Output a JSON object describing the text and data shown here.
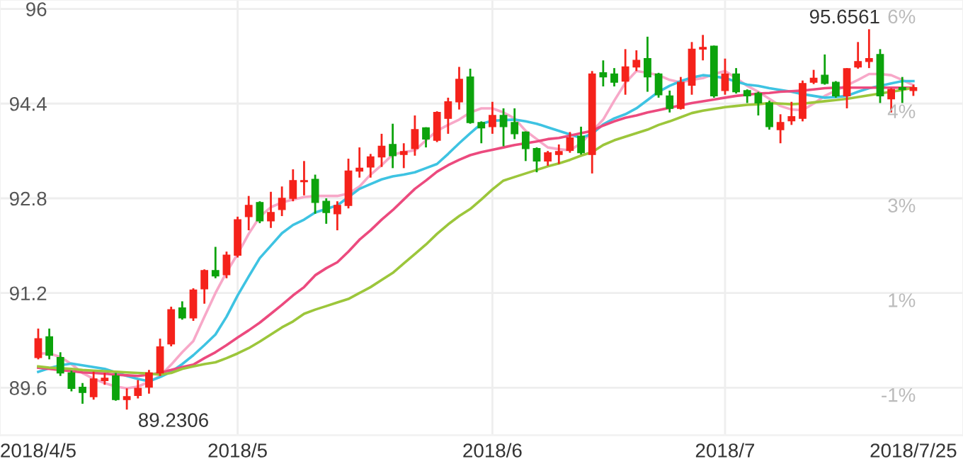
{
  "chart_data": {
    "type": "candlestick",
    "categories": [
      "2018/4/5",
      null,
      null,
      null,
      null,
      null,
      null,
      null,
      null,
      null,
      null,
      null,
      null,
      null,
      null,
      null,
      null,
      null,
      "2018/5",
      null,
      null,
      null,
      null,
      null,
      null,
      null,
      null,
      null,
      null,
      null,
      null,
      null,
      null,
      null,
      null,
      null,
      null,
      null,
      null,
      null,
      null,
      "2018/6",
      null,
      null,
      null,
      null,
      null,
      null,
      null,
      null,
      null,
      null,
      null,
      null,
      null,
      null,
      null,
      null,
      null,
      null,
      null,
      null,
      "2018/7",
      null,
      null,
      null,
      null,
      null,
      null,
      null,
      null,
      null,
      null,
      null,
      null,
      null,
      null,
      null,
      null,
      "2018/7/25"
    ],
    "ohlc": [
      [
        90.11,
        90.6,
        90.08,
        90.43
      ],
      [
        90.46,
        90.6,
        90.08,
        90.15
      ],
      [
        90.11,
        90.2,
        89.8,
        89.85
      ],
      [
        89.85,
        89.89,
        89.54,
        89.59
      ],
      [
        89.61,
        89.68,
        89.33,
        89.52
      ],
      [
        89.45,
        89.87,
        89.4,
        89.75
      ],
      [
        89.72,
        89.85,
        89.65,
        89.76
      ],
      [
        89.8,
        89.85,
        89.38,
        89.4
      ],
      [
        89.4,
        89.59,
        89.2306,
        89.45
      ],
      [
        89.47,
        89.73,
        89.42,
        89.59
      ],
      [
        89.61,
        89.9,
        89.5,
        89.85
      ],
      [
        89.85,
        90.43,
        89.8,
        90.29
      ],
      [
        90.34,
        90.97,
        90.3,
        90.92
      ],
      [
        90.95,
        91.06,
        90.75,
        90.78
      ],
      [
        90.78,
        91.28,
        90.73,
        91.25
      ],
      [
        91.27,
        91.6,
        91.02,
        91.58
      ],
      [
        91.58,
        91.98,
        91.45,
        91.49
      ],
      [
        91.51,
        91.9,
        91.45,
        91.84
      ],
      [
        91.84,
        92.49,
        91.8,
        92.44
      ],
      [
        92.49,
        92.84,
        92.26,
        92.68
      ],
      [
        92.73,
        92.75,
        92.38,
        92.42
      ],
      [
        92.42,
        92.91,
        92.3,
        92.56
      ],
      [
        92.61,
        93.0,
        92.5,
        92.8
      ],
      [
        92.8,
        93.29,
        92.75,
        93.1
      ],
      [
        93.08,
        93.43,
        92.85,
        93.1
      ],
      [
        93.12,
        93.2,
        92.54,
        92.73
      ],
      [
        92.75,
        92.8,
        92.37,
        92.56
      ],
      [
        92.54,
        92.75,
        92.26,
        92.68
      ],
      [
        92.68,
        93.47,
        92.63,
        93.26
      ],
      [
        93.26,
        93.66,
        93.15,
        93.31
      ],
      [
        93.33,
        93.55,
        93.15,
        93.5
      ],
      [
        93.5,
        93.89,
        93.33,
        93.68
      ],
      [
        93.71,
        94.06,
        93.31,
        93.52
      ],
      [
        93.54,
        93.73,
        93.31,
        93.59
      ],
      [
        93.64,
        94.2,
        93.52,
        93.96
      ],
      [
        93.99,
        94.0,
        93.66,
        93.8
      ],
      [
        93.78,
        94.27,
        93.75,
        94.25
      ],
      [
        94.15,
        94.5,
        93.89,
        94.43
      ],
      [
        94.43,
        95.02,
        94.3,
        94.81
      ],
      [
        94.85,
        94.99,
        94.06,
        94.08
      ],
      [
        94.08,
        94.1,
        93.73,
        93.99
      ],
      [
        94.01,
        94.43,
        93.89,
        94.2
      ],
      [
        94.2,
        94.32,
        93.68,
        94.01
      ],
      [
        94.08,
        94.32,
        93.8,
        93.89
      ],
      [
        93.92,
        93.93,
        93.43,
        93.64
      ],
      [
        93.64,
        93.66,
        93.24,
        93.43
      ],
      [
        93.43,
        93.6,
        93.35,
        93.57
      ],
      [
        93.54,
        93.71,
        93.38,
        93.59
      ],
      [
        93.61,
        93.92,
        93.57,
        93.82
      ],
      [
        93.85,
        94.01,
        93.54,
        93.57
      ],
      [
        93.54,
        94.95,
        93.22,
        94.9
      ],
      [
        94.92,
        95.13,
        94.69,
        94.85
      ],
      [
        94.9,
        95.0,
        94.69,
        94.76
      ],
      [
        94.78,
        95.32,
        94.55,
        95.02
      ],
      [
        95.02,
        95.3,
        94.95,
        95.13
      ],
      [
        95.16,
        95.53,
        94.6,
        94.85
      ],
      [
        94.9,
        94.92,
        94.5,
        94.55
      ],
      [
        94.53,
        94.62,
        94.25,
        94.32
      ],
      [
        94.32,
        94.85,
        94.3,
        94.76
      ],
      [
        94.71,
        95.44,
        94.55,
        95.32
      ],
      [
        95.32,
        95.56,
        95.13,
        95.35
      ],
      [
        95.37,
        95.38,
        94.5,
        94.53
      ],
      [
        94.62,
        95.16,
        94.55,
        94.9
      ],
      [
        94.9,
        95.0,
        94.57,
        94.6
      ],
      [
        94.62,
        94.64,
        94.41,
        94.53
      ],
      [
        94.57,
        94.6,
        94.2,
        94.41
      ],
      [
        94.41,
        94.45,
        93.96,
        94.01
      ],
      [
        93.96,
        94.22,
        93.73,
        94.08
      ],
      [
        94.11,
        94.43,
        94.04,
        94.18
      ],
      [
        94.15,
        94.79,
        94.1,
        94.74
      ],
      [
        94.76,
        94.97,
        94.73,
        94.83
      ],
      [
        94.88,
        95.23,
        94.72,
        94.74
      ],
      [
        94.76,
        94.78,
        94.5,
        94.53
      ],
      [
        94.53,
        95.0,
        94.32,
        94.99
      ],
      [
        95.02,
        95.44,
        94.99,
        95.11
      ],
      [
        95.11,
        95.6561,
        95.0,
        95.16
      ],
      [
        95.23,
        95.32,
        94.41,
        94.53
      ],
      [
        94.48,
        94.66,
        94.25,
        94.64
      ],
      [
        94.67,
        94.85,
        94.41,
        94.64
      ],
      [
        94.62,
        94.72,
        94.53,
        94.67
      ]
    ],
    "colors": [
      "#f5221b",
      "#0ca30c",
      "#0ca30c",
      "#0ca30c",
      "#0ca30c",
      "#f5221b",
      "#f5221b",
      "#0ca30c",
      "#f5221b",
      "#f5221b",
      "#f5221b",
      "#f5221b",
      "#f5221b",
      "#0ca30c",
      "#f5221b",
      "#f5221b",
      "#0ca30c",
      "#f5221b",
      "#f5221b",
      "#f5221b",
      "#0ca30c",
      "#f5221b",
      "#f5221b",
      "#f5221b",
      "#f5221b",
      "#0ca30c",
      "#0ca30c",
      "#f5221b",
      "#f5221b",
      "#f5221b",
      "#f5221b",
      "#f5221b",
      "#0ca30c",
      "#f5221b",
      "#f5221b",
      "#0ca30c",
      "#f5221b",
      "#f5221b",
      "#f5221b",
      "#0ca30c",
      "#0ca30c",
      "#f5221b",
      "#0ca30c",
      "#0ca30c",
      "#0ca30c",
      "#0ca30c",
      "#f5221b",
      "#f5221b",
      "#f5221b",
      "#0ca30c",
      "#f5221b",
      "#0ca30c",
      "#0ca30c",
      "#f5221b",
      "#f5221b",
      "#0ca30c",
      "#0ca30c",
      "#0ca30c",
      "#f5221b",
      "#f5221b",
      "#f5221b",
      "#0ca30c",
      "#f5221b",
      "#0ca30c",
      "#0ca30c",
      "#0ca30c",
      "#0ca30c",
      "#f5221b",
      "#f5221b",
      "#f5221b",
      "#f5221b",
      "#0ca30c",
      "#0ca30c",
      "#f5221b",
      "#f5221b",
      "#f5221b",
      "#0ca30c",
      "#f5221b",
      "#0ca30c",
      "#f5221b"
    ],
    "series": [
      {
        "type": "line",
        "color": "#f7a8c8",
        "values": [
          90.18,
          90.18,
          90.12,
          90.0,
          89.85,
          89.75,
          89.68,
          89.62,
          89.59,
          89.62,
          89.7,
          89.8,
          89.99,
          90.2,
          90.39,
          90.8,
          91.2,
          91.55,
          91.86,
          92.2,
          92.49,
          92.65,
          92.73,
          92.78,
          92.82,
          92.84,
          92.84,
          92.84,
          92.88,
          93.0,
          93.2,
          93.36,
          93.54,
          93.58,
          93.61,
          93.78,
          93.94,
          94.04,
          94.13,
          94.25,
          94.32,
          94.32,
          94.25,
          94.15,
          93.94,
          93.8,
          93.66,
          93.63,
          93.61,
          93.73,
          93.93,
          94.13,
          94.45,
          94.75,
          94.95,
          94.92,
          94.88,
          94.8,
          94.76,
          94.8,
          94.83,
          94.9,
          94.95,
          94.83,
          94.7,
          94.6,
          94.48,
          94.36,
          94.3,
          94.29,
          94.4,
          94.53,
          94.62,
          94.71,
          94.8,
          94.9,
          94.9,
          94.88,
          94.8,
          94.71
        ]
      },
      {
        "type": "line",
        "color": "#3ec3e2",
        "values": [
          89.87,
          89.93,
          89.98,
          90.01,
          89.98,
          89.95,
          89.92,
          89.86,
          89.8,
          89.75,
          89.71,
          89.78,
          89.87,
          90.0,
          90.15,
          90.32,
          90.5,
          90.8,
          91.16,
          91.48,
          91.79,
          92.0,
          92.21,
          92.35,
          92.44,
          92.56,
          92.62,
          92.68,
          92.82,
          92.96,
          93.04,
          93.12,
          93.17,
          93.2,
          93.24,
          93.31,
          93.38,
          93.55,
          93.73,
          93.9,
          94.06,
          94.11,
          94.12,
          94.13,
          94.1,
          94.06,
          94.0,
          93.94,
          93.88,
          93.82,
          93.89,
          94.05,
          94.15,
          94.22,
          94.32,
          94.46,
          94.6,
          94.7,
          94.78,
          94.84,
          94.88,
          94.86,
          94.83,
          94.77,
          94.72,
          94.7,
          94.66,
          94.63,
          94.6,
          94.56,
          94.53,
          94.5,
          94.51,
          94.53,
          94.6,
          94.66,
          94.7,
          94.74,
          94.78,
          94.78
        ]
      },
      {
        "type": "line",
        "color": "#ec4a7e",
        "values": [
          89.94,
          89.92,
          89.9,
          89.88,
          89.86,
          89.85,
          89.84,
          89.82,
          89.81,
          89.8,
          89.82,
          89.85,
          89.9,
          89.95,
          89.99,
          90.1,
          90.2,
          90.32,
          90.45,
          90.57,
          90.7,
          90.85,
          91.0,
          91.16,
          91.3,
          91.5,
          91.62,
          91.72,
          91.9,
          92.1,
          92.26,
          92.44,
          92.6,
          92.78,
          92.96,
          93.1,
          93.25,
          93.36,
          93.45,
          93.53,
          93.58,
          93.62,
          93.66,
          93.7,
          93.73,
          93.76,
          93.8,
          93.82,
          93.86,
          93.9,
          93.94,
          94.03,
          94.1,
          94.16,
          94.2,
          94.25,
          94.29,
          94.33,
          94.37,
          94.41,
          94.44,
          94.47,
          94.5,
          94.53,
          94.55,
          94.57,
          94.58,
          94.6,
          94.61,
          94.62,
          94.64,
          94.66,
          94.67,
          94.67,
          94.67,
          94.67,
          94.67,
          94.67,
          94.67,
          94.67
        ]
      },
      {
        "type": "line",
        "color": "#9cc63b",
        "values": [
          89.96,
          89.94,
          89.93,
          89.92,
          89.9,
          89.89,
          89.88,
          89.87,
          89.86,
          89.85,
          89.84,
          89.82,
          89.85,
          89.92,
          89.96,
          90.0,
          90.03,
          90.1,
          90.18,
          90.27,
          90.38,
          90.5,
          90.62,
          90.72,
          90.85,
          90.92,
          90.98,
          91.04,
          91.1,
          91.2,
          91.3,
          91.42,
          91.54,
          91.7,
          91.86,
          92.02,
          92.2,
          92.36,
          92.5,
          92.62,
          92.78,
          92.95,
          93.1,
          93.16,
          93.22,
          93.28,
          93.34,
          93.39,
          93.45,
          93.52,
          93.58,
          93.7,
          93.78,
          93.84,
          93.9,
          93.96,
          94.04,
          94.1,
          94.17,
          94.24,
          94.28,
          94.31,
          94.34,
          94.36,
          94.38,
          94.39,
          94.41,
          94.4,
          94.39,
          94.4,
          94.42,
          94.44,
          94.46,
          94.48,
          94.51,
          94.54,
          94.57,
          94.6,
          94.63,
          94.67
        ]
      }
    ],
    "annotations": [
      "95.6561",
      "89.2306"
    ],
    "ylim": [
      88.8,
      96.15
    ],
    "yticks": [
      89.6,
      91.2,
      92.8,
      94.4,
      96
    ],
    "y2lim": [
      -1.85,
      6.28
    ],
    "y2ticks": [
      {
        "value": 6.11,
        "label": "6%"
      },
      {
        "value": 4.34,
        "label": "4%"
      },
      {
        "value": 2.58,
        "label": "3%"
      },
      {
        "value": 0.81,
        "label": "1%"
      },
      {
        "value": -0.96,
        "label": "-1%"
      }
    ],
    "grid": true
  }
}
